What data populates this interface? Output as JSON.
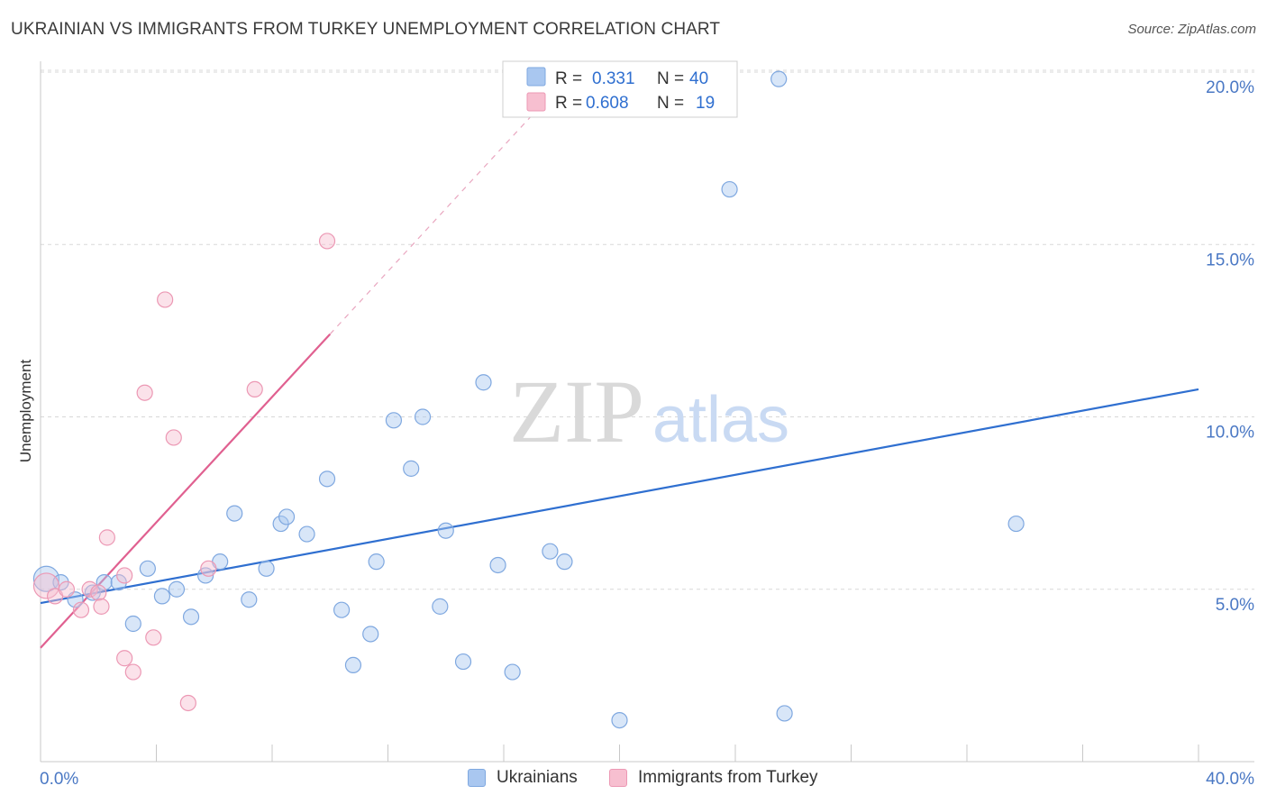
{
  "header": {
    "title": "UKRAINIAN VS IMMIGRANTS FROM TURKEY UNEMPLOYMENT CORRELATION CHART",
    "source": "Source: ZipAtlas.com"
  },
  "watermark": {
    "zip": "ZIP",
    "atlas": "atlas"
  },
  "colors": {
    "blue_fill": "#a9c7f0",
    "blue_stroke": "#7fa8e0",
    "blue_line": "#2f6fd0",
    "pink_fill": "#f7bfd0",
    "pink_stroke": "#ec98b4",
    "pink_line": "#e06090",
    "tick_text": "#4a78c4",
    "grid": "#d8d8d8"
  },
  "chart_data": {
    "type": "scatter",
    "title": "UKRAINIAN VS IMMIGRANTS FROM TURKEY UNEMPLOYMENT CORRELATION CHART",
    "xlabel": "",
    "ylabel": "Unemployment",
    "xlim": [
      0,
      40
    ],
    "ylim": [
      0,
      20
    ],
    "x_tick_labels": [
      "0.0%",
      "40.0%"
    ],
    "y_ticks": [
      5,
      10,
      15,
      20
    ],
    "y_tick_labels": [
      "5.0%",
      "10.0%",
      "15.0%",
      "20.0%"
    ],
    "grid": true,
    "legend_position": "top-center",
    "series": [
      {
        "name": "Ukrainians",
        "R_label": "R =",
        "R": "0.331",
        "N_label": "N =",
        "N": "40",
        "trend": {
          "x0": 0,
          "y0": 4.6,
          "x1": 40,
          "y1": 10.8,
          "dashed_to_x": null
        },
        "points": [
          [
            0.2,
            5.3
          ],
          [
            0.7,
            5.2
          ],
          [
            1.2,
            4.7
          ],
          [
            1.8,
            4.9
          ],
          [
            2.2,
            5.2
          ],
          [
            2.7,
            5.2
          ],
          [
            3.2,
            4.0
          ],
          [
            3.7,
            5.6
          ],
          [
            4.2,
            4.8
          ],
          [
            4.7,
            5.0
          ],
          [
            5.2,
            4.2
          ],
          [
            5.7,
            5.4
          ],
          [
            6.2,
            5.8
          ],
          [
            6.7,
            7.2
          ],
          [
            7.2,
            4.7
          ],
          [
            7.8,
            5.6
          ],
          [
            8.3,
            6.9
          ],
          [
            8.5,
            7.1
          ],
          [
            9.2,
            6.6
          ],
          [
            9.9,
            8.2
          ],
          [
            10.4,
            4.4
          ],
          [
            10.8,
            2.8
          ],
          [
            11.4,
            3.7
          ],
          [
            11.6,
            5.8
          ],
          [
            12.2,
            9.9
          ],
          [
            12.8,
            8.5
          ],
          [
            13.2,
            10.0
          ],
          [
            13.8,
            4.5
          ],
          [
            14.0,
            6.7
          ],
          [
            14.6,
            2.9
          ],
          [
            15.3,
            11.0
          ],
          [
            15.8,
            5.7
          ],
          [
            16.3,
            2.6
          ],
          [
            17.6,
            6.1
          ],
          [
            18.1,
            5.8
          ],
          [
            20.0,
            1.2
          ],
          [
            23.8,
            16.6
          ],
          [
            25.5,
            19.8
          ],
          [
            25.7,
            1.4
          ],
          [
            33.7,
            6.9
          ]
        ]
      },
      {
        "name": "Immigrants from Turkey",
        "R_label": "R =",
        "R": "0.608",
        "N_label": "N =",
        "N": "19",
        "trend": {
          "x0": 0,
          "y0": 3.3,
          "x1": 10.0,
          "y1": 12.4,
          "dashed_to_x": 18.0
        },
        "points": [
          [
            0.2,
            5.1
          ],
          [
            0.5,
            4.8
          ],
          [
            0.9,
            5.0
          ],
          [
            1.4,
            4.4
          ],
          [
            1.7,
            5.0
          ],
          [
            2.0,
            4.9
          ],
          [
            2.3,
            6.5
          ],
          [
            2.9,
            5.4
          ],
          [
            2.1,
            4.5
          ],
          [
            2.9,
            3.0
          ],
          [
            3.2,
            2.6
          ],
          [
            3.6,
            10.7
          ],
          [
            3.9,
            3.6
          ],
          [
            4.3,
            13.4
          ],
          [
            4.6,
            9.4
          ],
          [
            5.1,
            1.7
          ],
          [
            5.8,
            5.6
          ],
          [
            7.4,
            10.8
          ],
          [
            9.9,
            15.1
          ]
        ]
      }
    ]
  }
}
